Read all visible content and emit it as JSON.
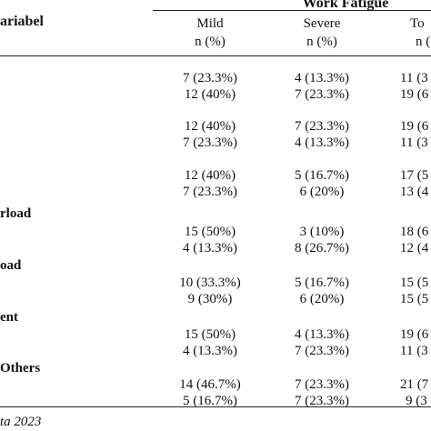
{
  "header": {
    "variable_label": "ariabel",
    "group_label": "Work Fatigue",
    "columns": [
      {
        "name": "Mild",
        "unit": "n (%)"
      },
      {
        "name": "Severe",
        "unit": "n (%)"
      },
      {
        "name": "To",
        "unit": "n ("
      }
    ]
  },
  "groups": [
    {
      "label": "",
      "rows": [
        {
          "mild": "7 (23.3%)",
          "severe": "4 (13.3%)",
          "total": "11 (3"
        },
        {
          "mild": "12 (40%)",
          "severe": "7 (23.3%)",
          "total": "19 (6"
        }
      ]
    },
    {
      "label": "",
      "rows": [
        {
          "mild": "12 (40%)",
          "severe": "7 (23.3%)",
          "total": "19 (6"
        },
        {
          "mild": "7 (23.3%)",
          "severe": "4 (13.3%)",
          "total": "11 (3"
        }
      ]
    },
    {
      "label": "",
      "rows": [
        {
          "mild": "12 (40%)",
          "severe": "5 (16.7%)",
          "total": "17 (5"
        },
        {
          "mild": "7 (23.3%)",
          "severe": "6 (20%)",
          "total": "13 (4"
        }
      ]
    },
    {
      "label": "rload",
      "rows": [
        {
          "mild": "15 (50%)",
          "severe": "3 (10%)",
          "total": "18 (6"
        },
        {
          "mild": "4 (13.3%)",
          "severe": "8 (26.7%)",
          "total": "12 (4"
        }
      ]
    },
    {
      "label": "oad",
      "rows": [
        {
          "mild": "10 (33.3%)",
          "severe": "5 (16.7%)",
          "total": "15 (5"
        },
        {
          "mild": "9 (30%)",
          "severe": "6 (20%)",
          "total": "15 (5"
        }
      ]
    },
    {
      "label": "ent",
      "rows": [
        {
          "mild": "15 (50%)",
          "severe": "4 (13.3%)",
          "total": "19 (6"
        },
        {
          "mild": "4 (13.3%)",
          "severe": "7 (23.3%)",
          "total": "11 (3"
        }
      ]
    },
    {
      "label": "Others",
      "rows": [
        {
          "mild": "14 (46.7%)",
          "severe": "7 (23.3%)",
          "total": "21 (7"
        },
        {
          "mild": "5 (16.7%)",
          "severe": "7 (23.3%)",
          "total": "9 (3"
        }
      ]
    }
  ],
  "footer": {
    "source": "ta 2023"
  }
}
